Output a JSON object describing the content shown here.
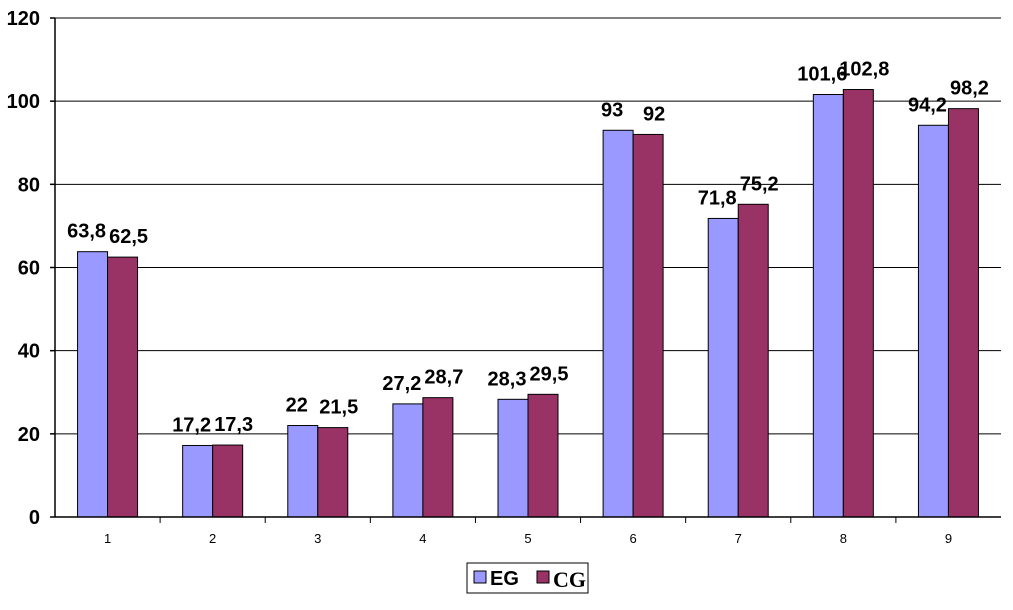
{
  "chart_data": {
    "type": "bar",
    "categories": [
      "1",
      "2",
      "3",
      "4",
      "5",
      "6",
      "7",
      "8",
      "9"
    ],
    "series": [
      {
        "name": "EG",
        "color": "#9999ff",
        "values": [
          63.8,
          17.2,
          22,
          27.2,
          28.3,
          93,
          71.8,
          101.6,
          94.2
        ],
        "labels": [
          "63,8",
          "17,2",
          "22",
          "27,2",
          "28,3",
          "93",
          "71,8",
          "101,6",
          "94,2"
        ]
      },
      {
        "name": "CG",
        "color": "#993366",
        "values": [
          62.5,
          17.3,
          21.5,
          28.7,
          29.5,
          92,
          75.2,
          102.8,
          98.2
        ],
        "labels": [
          "62,5",
          "17,3",
          "21,5",
          "28,7",
          "29,5",
          "92",
          "75,2",
          "102,8",
          "98,2"
        ]
      }
    ],
    "y_ticks": [
      "0",
      "20",
      "40",
      "60",
      "80",
      "100",
      "120"
    ],
    "ylim": [
      0,
      120
    ],
    "grid": true,
    "legend_position": "bottom"
  }
}
